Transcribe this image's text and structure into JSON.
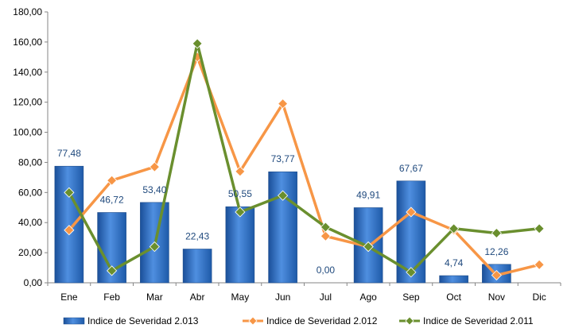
{
  "chart_data": {
    "type": "bar",
    "categories": [
      "Ene",
      "Feb",
      "Mar",
      "Abr",
      "May",
      "Jun",
      "Jul",
      "Ago",
      "Sep",
      "Oct",
      "Nov",
      "Dic"
    ],
    "ylim": [
      0,
      180
    ],
    "yticks": [
      0,
      20,
      40,
      60,
      80,
      100,
      120,
      140,
      160,
      180
    ],
    "ytick_labels": [
      "0,00",
      "20,00",
      "40,00",
      "60,00",
      "80,00",
      "100,00",
      "120,00",
      "140,00",
      "160,00",
      "180,00"
    ],
    "grid": false,
    "legend_position": "bottom",
    "series": [
      {
        "name": "Indice de Severidad 2.013",
        "kind": "bar",
        "color": "#2e6cc0",
        "values": [
          77.48,
          46.72,
          53.4,
          22.43,
          50.55,
          73.77,
          0.0,
          49.91,
          67.67,
          4.74,
          12.26,
          null
        ],
        "data_labels": [
          "77,48",
          "46,72",
          "53,40",
          "22,43",
          "50,55",
          "73,77",
          "0,00",
          "49,91",
          "67,67",
          "4,74",
          "12,26",
          ""
        ]
      },
      {
        "name": "Indice de Severidad 2.012",
        "kind": "line",
        "color": "#f79646",
        "values": [
          35,
          68,
          77,
          150,
          74,
          119,
          31,
          24,
          47,
          35,
          5,
          12
        ]
      },
      {
        "name": "Indice de Severidad 2.011",
        "kind": "line",
        "color": "#6a8f2e",
        "values": [
          60,
          8,
          24,
          159,
          47,
          58,
          37,
          24,
          7,
          36,
          33,
          36
        ]
      }
    ]
  }
}
